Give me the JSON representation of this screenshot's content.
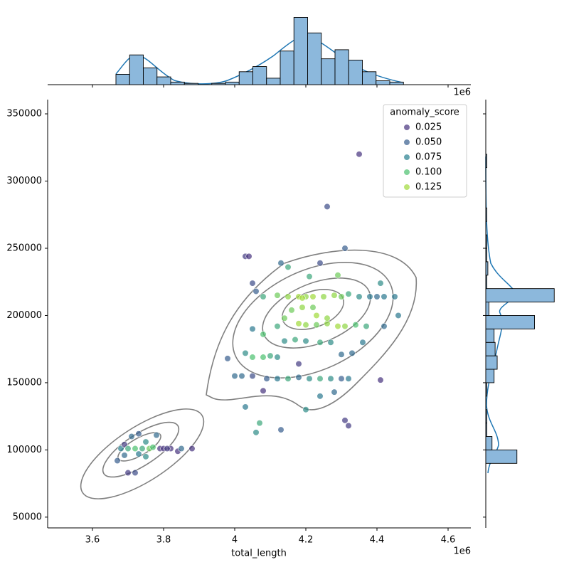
{
  "chart_data": {
    "type": "scatter",
    "x_label": "total_length",
    "x_offset_label": "1e6",
    "xlim": [
      3.474,
      4.664
    ],
    "ylim": [
      42000,
      360600
    ],
    "xticks": [
      3.6,
      3.8,
      4.0,
      4.2,
      4.4,
      4.6
    ],
    "yticks": [
      50000,
      100000,
      150000,
      200000,
      250000,
      300000,
      350000
    ],
    "legend_title": "anomaly_score",
    "legend_loc": "upper right",
    "legend": [
      {
        "name": "0.025",
        "value": 0.025,
        "color": "#46327e"
      },
      {
        "name": "0.050",
        "value": 0.05,
        "color": "#365c8d"
      },
      {
        "name": "0.075",
        "value": 0.075,
        "color": "#277f8e"
      },
      {
        "name": "0.100",
        "value": 0.1,
        "color": "#4ac16d"
      },
      {
        "name": "0.125",
        "value": 0.125,
        "color": "#a0da39"
      }
    ],
    "x": [
      3.67,
      3.68,
      3.69,
      3.7,
      3.71,
      3.72,
      3.73,
      3.74,
      3.75,
      3.76,
      3.78,
      3.79,
      3.8,
      3.82,
      3.84,
      3.88,
      3.7,
      3.72,
      3.73,
      3.77,
      3.81,
      3.85,
      3.69,
      3.75,
      4.03,
      4.04,
      4.05,
      4.06,
      4.08,
      4.12,
      4.15,
      4.18,
      4.2,
      4.22,
      4.25,
      4.28,
      4.3,
      4.32,
      4.35,
      4.38,
      4.4,
      4.42,
      4.45,
      4.18,
      4.2,
      4.23,
      4.26,
      4.29,
      4.31,
      4.34,
      4.37,
      4.42,
      4.46,
      4.16,
      4.19,
      4.22,
      4.05,
      4.08,
      4.12,
      4.14,
      4.17,
      4.2,
      4.24,
      4.27,
      4.3,
      4.33,
      4.36,
      4.03,
      4.05,
      4.08,
      4.1,
      4.12,
      4.02,
      4.05,
      4.09,
      4.12,
      4.15,
      4.18,
      4.21,
      4.24,
      4.27,
      4.3,
      4.32,
      4.03,
      4.06,
      4.07,
      4.13,
      4.2,
      4.24,
      4.28,
      4.31,
      4.32,
      4.41,
      4.18,
      4.08,
      4.26,
      4.35,
      4.31,
      4.24,
      4.13,
      4.15,
      4.21,
      4.29,
      4.41,
      3.98,
      4.0,
      4.26,
      4.14,
      4.19,
      4.23
    ],
    "y": [
      92000,
      101000,
      104000,
      101000,
      110000,
      101000,
      112000,
      101000,
      106000,
      101000,
      111000,
      101000,
      101000,
      101000,
      99000,
      101000,
      83000,
      83000,
      97000,
      102000,
      101000,
      101000,
      96000,
      95000,
      244000,
      244000,
      224000,
      218000,
      214000,
      215000,
      214000,
      214000,
      214000,
      214000,
      214000,
      215000,
      214000,
      216000,
      214000,
      214000,
      214000,
      214000,
      214000,
      194000,
      193000,
      193000,
      194000,
      192000,
      192000,
      193000,
      192000,
      192000,
      200000,
      204000,
      206000,
      206000,
      190000,
      186000,
      192000,
      181000,
      182000,
      181000,
      180000,
      180000,
      171000,
      172000,
      180000,
      172000,
      169000,
      169000,
      170000,
      169000,
      155000,
      155000,
      153000,
      153000,
      153000,
      154000,
      153000,
      153000,
      153000,
      153000,
      153000,
      132000,
      113000,
      120000,
      115000,
      130000,
      140000,
      143000,
      122000,
      118000,
      152000,
      164000,
      144000,
      281000,
      320000,
      250000,
      239000,
      239000,
      236000,
      229000,
      230000,
      224000,
      168000,
      155000,
      198000,
      198000,
      213000,
      200000
    ],
    "hue": [
      0.05,
      0.075,
      0.03,
      0.09,
      0.06,
      0.1,
      0.05,
      0.09,
      0.08,
      0.11,
      0.06,
      0.02,
      0.015,
      0.02,
      0.02,
      0.02,
      0.03,
      0.04,
      0.07,
      0.1,
      0.03,
      0.06,
      0.06,
      0.08,
      0.03,
      0.02,
      0.04,
      0.05,
      0.09,
      0.11,
      0.12,
      0.13,
      0.12,
      0.13,
      0.12,
      0.12,
      0.11,
      0.09,
      0.08,
      0.07,
      0.06,
      0.07,
      0.07,
      0.13,
      0.12,
      0.11,
      0.12,
      0.13,
      0.12,
      0.1,
      0.09,
      0.06,
      0.07,
      0.11,
      0.12,
      0.11,
      0.07,
      0.1,
      0.09,
      0.08,
      0.09,
      0.08,
      0.09,
      0.08,
      0.06,
      0.06,
      0.07,
      0.08,
      0.1,
      0.1,
      0.09,
      0.08,
      0.06,
      0.04,
      0.05,
      0.07,
      0.09,
      0.06,
      0.08,
      0.09,
      0.08,
      0.05,
      0.07,
      0.07,
      0.08,
      0.09,
      0.05,
      0.08,
      0.07,
      0.06,
      0.03,
      0.03,
      0.02,
      0.03,
      0.02,
      0.04,
      0.02,
      0.05,
      0.04,
      0.06,
      0.09,
      0.09,
      0.11,
      0.08,
      0.05,
      0.06,
      0.12,
      0.11,
      0.13,
      0.13
    ],
    "x_hist": {
      "color": "#8cb8dc",
      "bins": [
        3.666,
        3.7045,
        3.743,
        3.7815,
        3.82,
        3.8585,
        3.897,
        3.9355,
        3.974,
        4.0125,
        4.051,
        4.0895,
        4.128,
        4.1665,
        4.205,
        4.2435,
        4.282,
        4.3205,
        4.359,
        4.3975,
        4.436,
        4.4745
      ],
      "counts": [
        8,
        23,
        13,
        6,
        2,
        1,
        0,
        1,
        2,
        10,
        14,
        5,
        26,
        52,
        40,
        20,
        27,
        19,
        10,
        3,
        2
      ],
      "lim": [
        0,
        55
      ]
    },
    "y_hist": {
      "color": "#8cb8dc",
      "bins": [
        80000,
        90000,
        100000,
        110000,
        120000,
        130000,
        140000,
        150000,
        160000,
        170000,
        180000,
        190000,
        200000,
        210000,
        220000,
        230000,
        240000,
        250000,
        260000,
        270000,
        280000,
        290000,
        300000,
        310000,
        320000
      ],
      "counts": [
        0,
        30,
        6,
        1,
        1,
        0,
        1,
        8,
        11,
        9,
        8,
        47,
        3,
        66,
        1,
        2,
        1,
        1,
        0,
        1,
        0,
        0,
        0,
        1
      ],
      "lim": [
        0,
        72
      ]
    }
  }
}
